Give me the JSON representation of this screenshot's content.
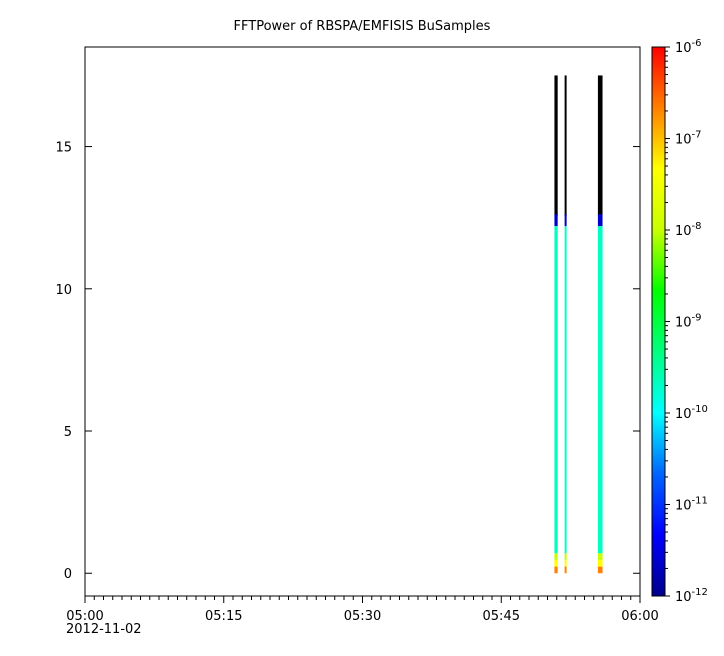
{
  "chart_data": {
    "type": "heatmap",
    "title": "FFTPower of RBSPA/EMFISIS  BuSamples",
    "xlabel": "",
    "ylabel": "",
    "x_ticks": [
      "05:00",
      "05:15",
      "05:30",
      "05:45",
      "06:00"
    ],
    "x_sublabel": "2012-11-02",
    "x_range_minutes": [
      0,
      60
    ],
    "y_ticks": [
      "0",
      "5",
      "10",
      "15"
    ],
    "y_range": [
      -0.8,
      18.5
    ],
    "grid": false,
    "colorbar": {
      "scale": "log",
      "range": [
        1e-12,
        1e-06
      ],
      "tick_base": "10",
      "tick_exponents": [
        "-12",
        "-11",
        "-10",
        "-9",
        "-8",
        "-7",
        "-6"
      ],
      "colormap": [
        "#00008c",
        "#0000ff",
        "#0064ff",
        "#00ffff",
        "#00ff80",
        "#00ff00",
        "#c8ff00",
        "#ffff00",
        "#ff8000",
        "#ff0000"
      ]
    },
    "series": [
      {
        "start_min": 50.75,
        "end_min": 51.1,
        "y_top": 17.5,
        "top_color": "#000000",
        "transition_y": 12.2,
        "mid_color": "#00ffc0",
        "low_y": 0.7,
        "low_colors": [
          "#c8ff00",
          "#ffff00",
          "#ff8000"
        ]
      },
      {
        "start_min": 51.85,
        "end_min": 52.05,
        "y_top": 17.5,
        "top_color": "#000000",
        "transition_y": 12.2,
        "mid_color": "#00ffc0",
        "low_y": 0.7,
        "low_colors": [
          "#c8ff00",
          "#ffff00",
          "#ff8000"
        ]
      },
      {
        "start_min": 55.45,
        "end_min": 55.95,
        "y_top": 17.5,
        "top_color": "#000000",
        "transition_y": 12.2,
        "mid_color": "#00ffc0",
        "low_y": 0.7,
        "low_colors": [
          "#c8ff00",
          "#ffff00",
          "#ff8000"
        ]
      }
    ]
  }
}
